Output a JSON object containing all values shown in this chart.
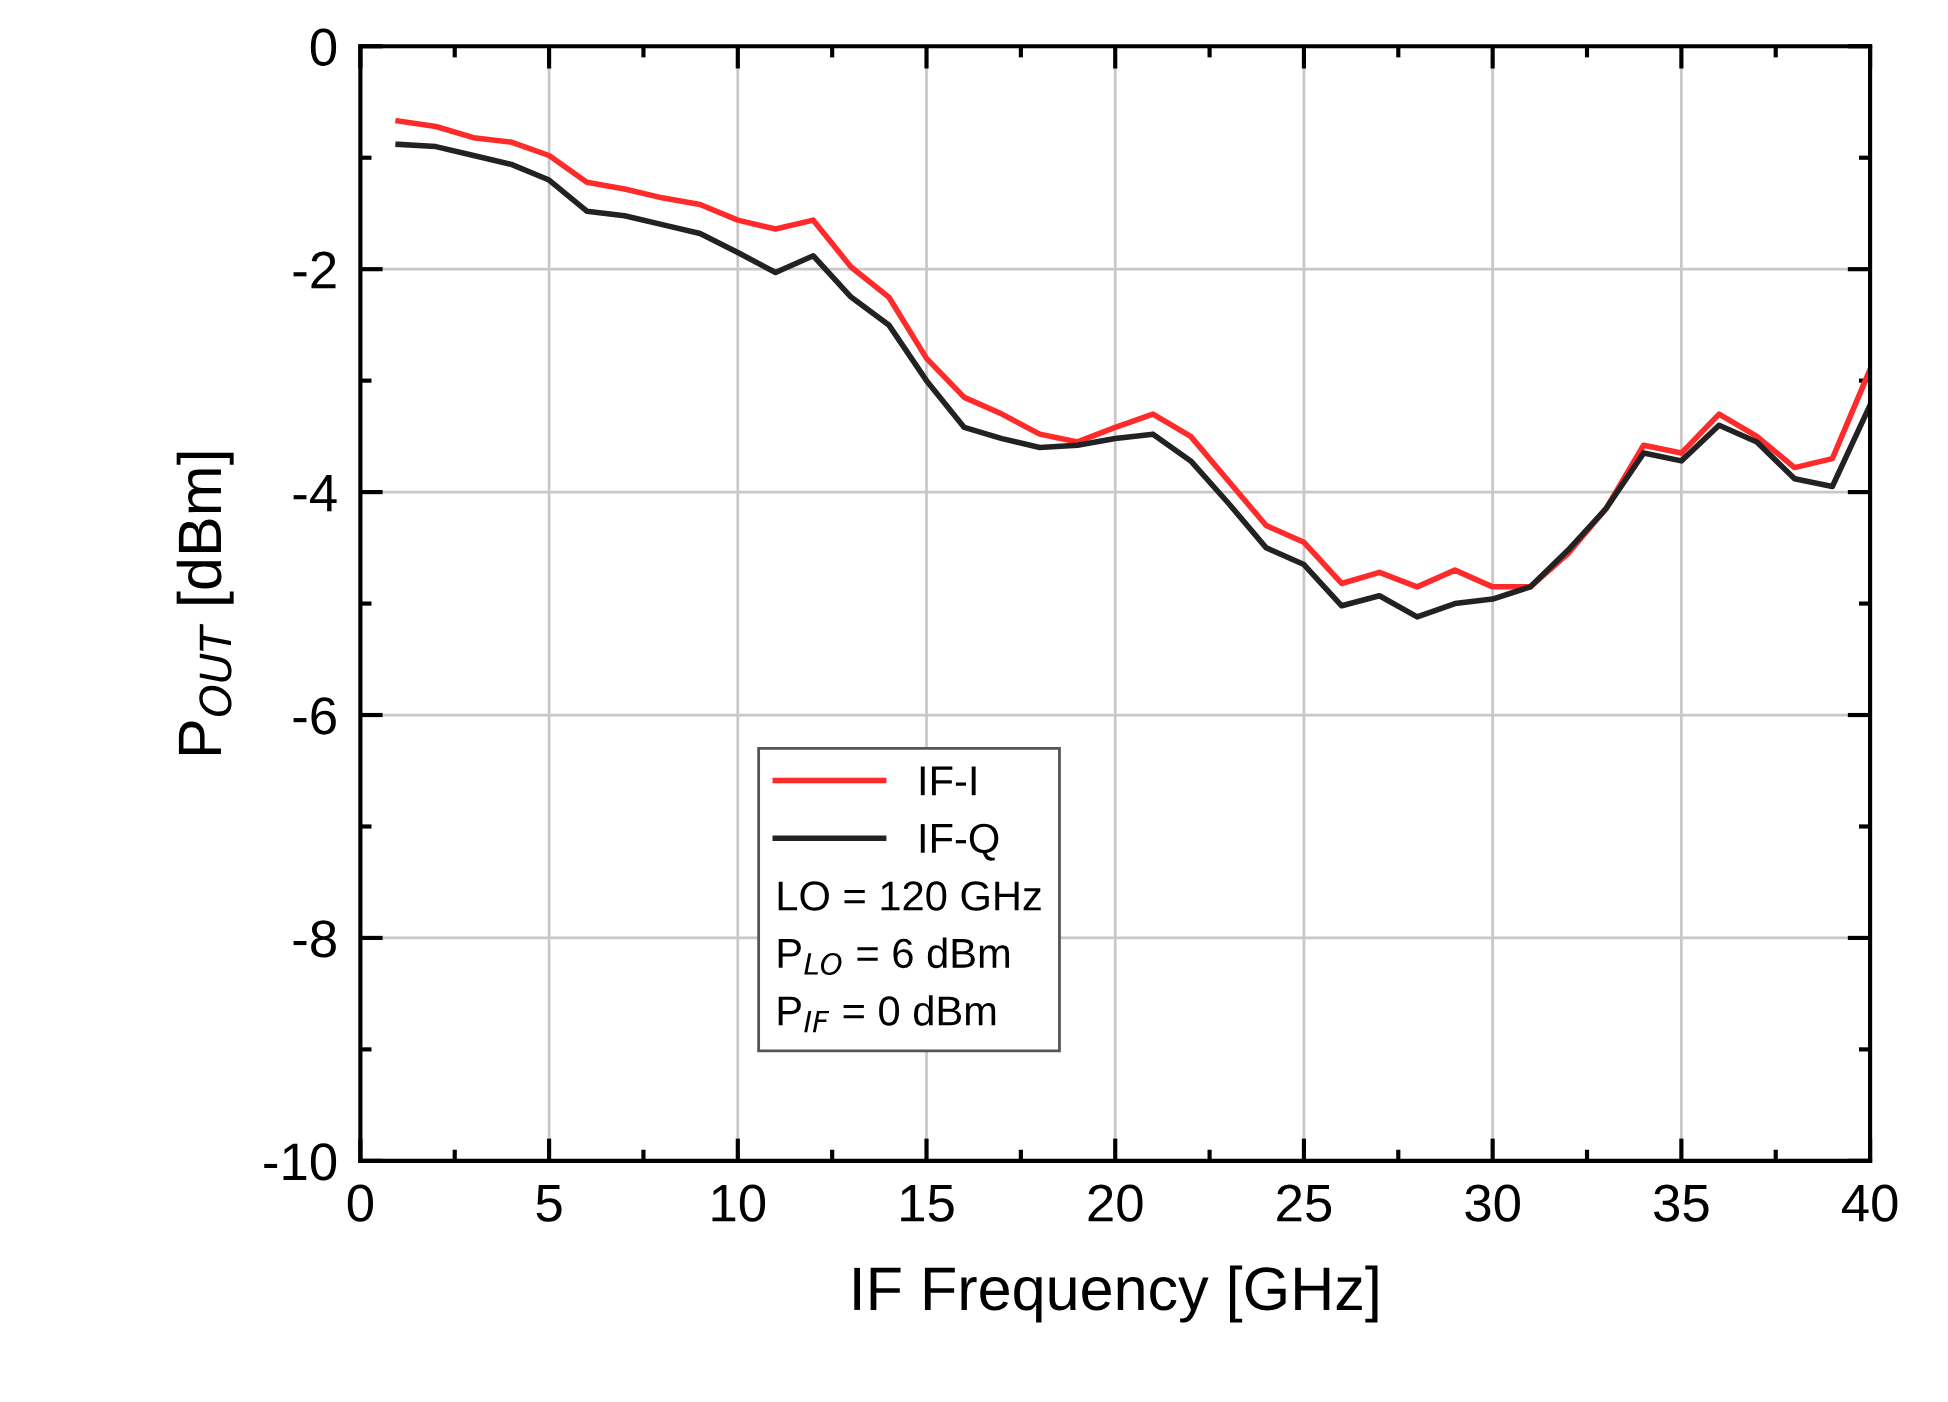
{
  "chart_data": {
    "type": "line",
    "xlabel": "IF Frequency [GHz]",
    "ylabel": "P$_{OUT}$ [dBm]",
    "x": [
      1,
      2,
      3,
      4,
      5,
      6,
      7,
      8,
      9,
      10,
      11,
      12,
      13,
      14,
      15,
      16,
      17,
      18,
      19,
      20,
      21,
      22,
      23,
      24,
      25,
      26,
      27,
      28,
      29,
      30,
      31,
      32,
      33,
      34,
      35,
      36,
      37,
      38,
      39,
      40
    ],
    "series": [
      {
        "name": "IF-I",
        "color": "#ff2a2a",
        "values": [
          -0.67,
          -0.72,
          -0.82,
          -0.86,
          -0.98,
          -1.22,
          -1.28,
          -1.36,
          -1.42,
          -1.56,
          -1.64,
          -1.56,
          -1.98,
          -2.25,
          -2.8,
          -3.15,
          -3.3,
          -3.48,
          -3.55,
          -3.42,
          -3.3,
          -3.5,
          -3.9,
          -4.3,
          -4.45,
          -4.82,
          -4.72,
          -4.85,
          -4.7,
          -4.85,
          -4.85,
          -4.55,
          -4.15,
          -3.58,
          -3.65,
          -3.3,
          -3.5,
          -3.78,
          -3.7,
          -2.9
        ]
      },
      {
        "name": "IF-Q",
        "color": "#222222",
        "values": [
          -0.88,
          -0.9,
          -0.98,
          -1.06,
          -1.2,
          -1.48,
          -1.52,
          -1.6,
          -1.68,
          -1.85,
          -2.03,
          -1.88,
          -2.25,
          -2.5,
          -3.0,
          -3.42,
          -3.52,
          -3.6,
          -3.58,
          -3.52,
          -3.48,
          -3.72,
          -4.1,
          -4.5,
          -4.65,
          -5.02,
          -4.93,
          -5.12,
          -5.0,
          -4.96,
          -4.85,
          -4.52,
          -4.15,
          -3.65,
          -3.72,
          -3.4,
          -3.55,
          -3.88,
          -3.95,
          -3.22
        ]
      }
    ],
    "annotations": [
      "LO = 120 GHz",
      "P$_{LO}$ = 6 dBm",
      "P$_{IF}$ = 0 dBm"
    ],
    "xlim": [
      0,
      40
    ],
    "ylim": [
      -10,
      0
    ],
    "xticks": [
      0,
      {
        "value": 2.5,
        "label": null
      },
      5,
      {
        "value": 7.5,
        "label": null
      },
      10,
      {
        "value": 12.5,
        "label": null
      },
      15,
      {
        "value": 17.5,
        "label": null
      },
      20,
      {
        "value": 22.5,
        "label": null
      },
      25,
      {
        "value": 27.5,
        "label": null
      },
      30,
      {
        "value": 32.5,
        "label": null
      },
      35,
      {
        "value": 37.5,
        "label": null
      },
      40
    ],
    "yticks": [
      -10,
      {
        "value": -9,
        "label": null
      },
      -8,
      {
        "value": -7,
        "label": null
      },
      -6,
      {
        "value": -5,
        "label": null
      },
      -4,
      {
        "value": -3,
        "label": null
      },
      -2,
      {
        "value": -1,
        "label": null
      },
      0
    ],
    "grid": true,
    "legend": "bottom",
    "marker": "none",
    "line_style": "solid"
  }
}
